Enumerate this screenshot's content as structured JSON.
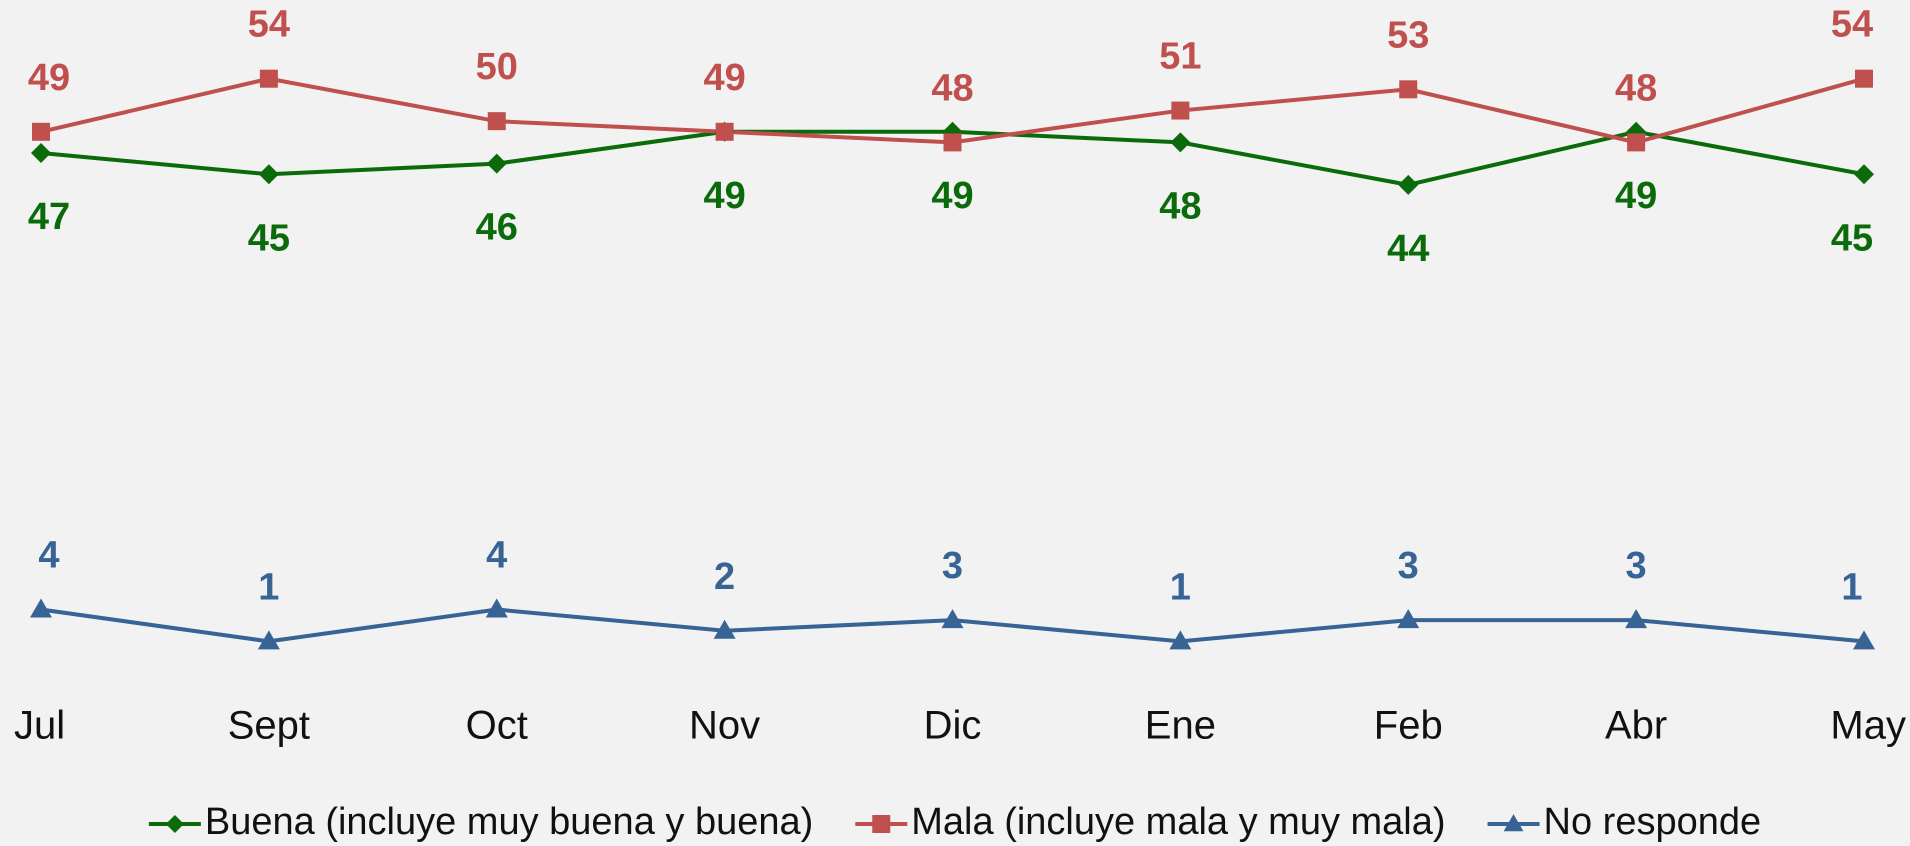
{
  "chart_data": {
    "type": "line",
    "categories": [
      "Jul",
      "Sept",
      "Oct",
      "Nov",
      "Dic",
      "Ene",
      "Feb",
      "Abr",
      "May"
    ],
    "series": [
      {
        "name": "Buena (incluye muy buena y buena)",
        "color": "#0b6b0b",
        "marker": "diamond",
        "values": [
          47,
          45,
          46,
          49,
          49,
          48,
          44,
          49,
          45
        ]
      },
      {
        "name": "Mala (incluye mala y muy mala)",
        "color": "#c0504d",
        "marker": "square",
        "values": [
          49,
          54,
          50,
          49,
          48,
          51,
          53,
          48,
          54
        ]
      },
      {
        "name": "No responde",
        "color": "#386395",
        "marker": "triangle",
        "values": [
          4,
          1,
          4,
          2,
          3,
          1,
          3,
          3,
          1
        ]
      }
    ],
    "ylim": [
      0,
      60
    ],
    "grid": false,
    "legend": "bottom"
  }
}
